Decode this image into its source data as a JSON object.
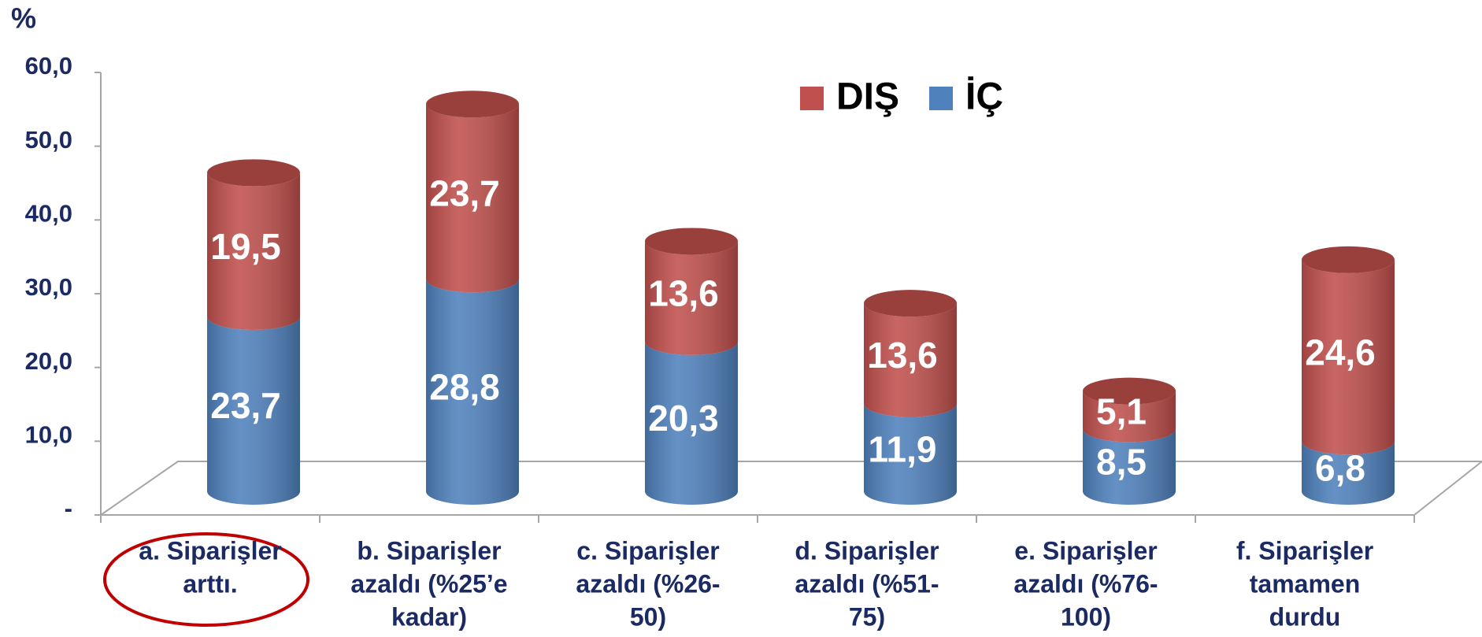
{
  "chart_data": {
    "type": "bar",
    "stacked": true,
    "y_label": "%",
    "categories": [
      [
        "a. Siparişler",
        "arttı."
      ],
      [
        "b. Siparişler",
        "azaldı (%25’e",
        "kadar)"
      ],
      [
        "c. Siparişler",
        "azaldı (%26-",
        "50)"
      ],
      [
        "d. Siparişler",
        "azaldı (%51-",
        "75)"
      ],
      [
        "e. Siparişler",
        "azaldı (%76-",
        "100)"
      ],
      [
        "f. Siparişler",
        "tamamen",
        "durdu"
      ]
    ],
    "series": [
      {
        "name": "İÇ",
        "color": "#4f81bd",
        "values": [
          23.7,
          28.8,
          20.3,
          11.9,
          8.5,
          6.8
        ],
        "value_labels": [
          "23,7",
          "28,8",
          "20,3",
          "11,9",
          "8,5",
          "6,8"
        ]
      },
      {
        "name": "DIŞ",
        "color": "#c0504d",
        "values": [
          19.5,
          23.7,
          13.6,
          13.6,
          5.1,
          24.6
        ],
        "value_labels": [
          "19,5",
          "23,7",
          "13,6",
          "13,6",
          "5,1",
          "24,6"
        ]
      }
    ],
    "ylim": [
      0,
      60
    ],
    "yticks": [
      {
        "value": 0,
        "label": "-"
      },
      {
        "value": 10,
        "label": "10,0"
      },
      {
        "value": 20,
        "label": "20,0"
      },
      {
        "value": 30,
        "label": "30,0"
      },
      {
        "value": 40,
        "label": "40,0"
      },
      {
        "value": 50,
        "label": "50,0"
      },
      {
        "value": 60,
        "label": "60,0"
      }
    ],
    "legend": "top"
  }
}
